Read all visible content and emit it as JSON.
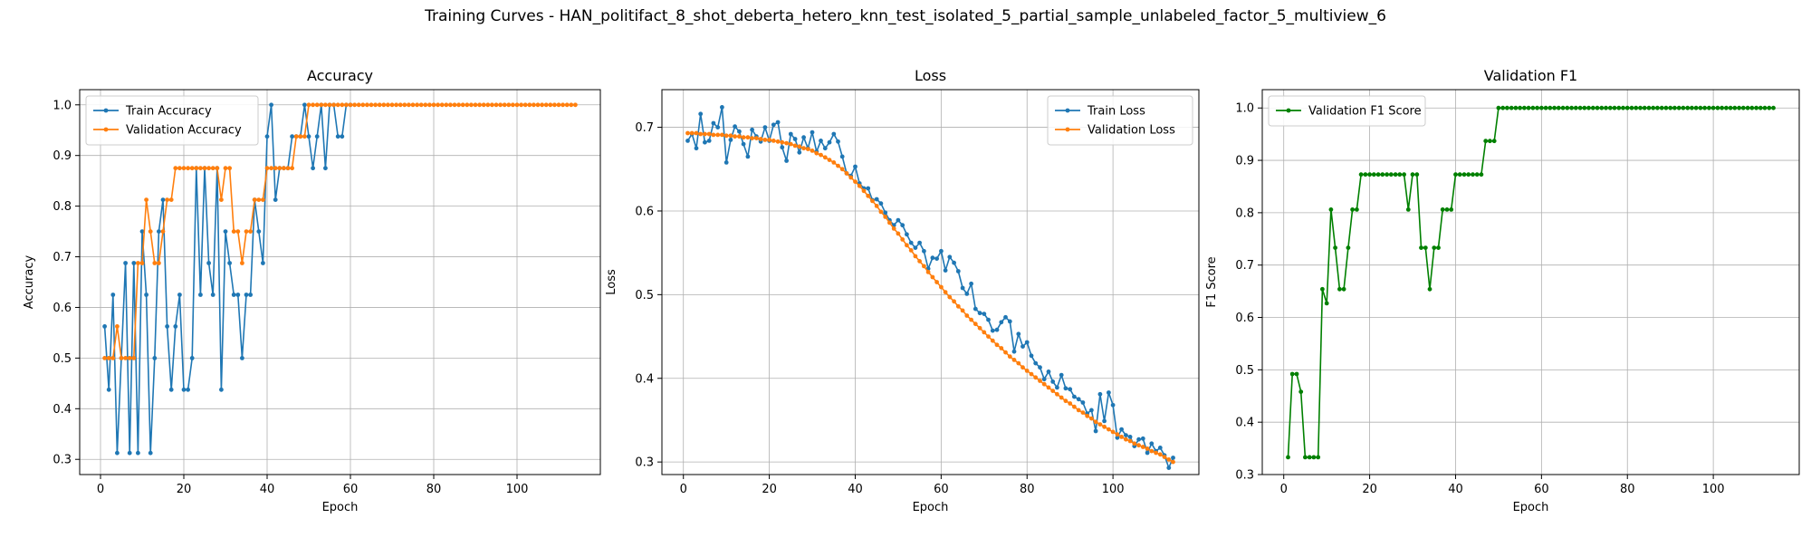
{
  "figure": {
    "suptitle": "Training Curves - HAN_politifact_8_shot_deberta_hetero_knn_test_isolated_5_partial_sample_unlabeled_factor_5_multiview_6"
  },
  "colors": {
    "blue": "#1f77b4",
    "orange": "#ff7f0e",
    "green": "#008000",
    "grid": "#b0b0b0"
  },
  "chart_data": [
    {
      "type": "line",
      "title": "Accuracy",
      "xlabel": "Epoch",
      "ylabel": "Accuracy",
      "xlim": [
        -5,
        120
      ],
      "ylim": [
        0.27,
        1.03
      ],
      "xticks": [
        0,
        20,
        40,
        60,
        80,
        100
      ],
      "yticks": [
        0.3,
        0.4,
        0.5,
        0.6,
        0.7,
        0.8,
        0.9,
        1.0
      ],
      "grid": true,
      "legend": "upper-left",
      "series": [
        {
          "name": "Train Accuracy",
          "color": "#1f77b4",
          "x_start": 1,
          "values": [
            0.5625,
            0.4375,
            0.625,
            0.3125,
            0.5,
            0.6875,
            0.3125,
            0.6875,
            0.3125,
            0.75,
            0.625,
            0.3125,
            0.5,
            0.75,
            0.8125,
            0.5625,
            0.4375,
            0.5625,
            0.625,
            0.4375,
            0.4375,
            0.5,
            0.875,
            0.625,
            0.875,
            0.6875,
            0.625,
            0.875,
            0.4375,
            0.75,
            0.6875,
            0.625,
            0.625,
            0.5,
            0.625,
            0.625,
            0.8125,
            0.75,
            0.6875,
            0.9375,
            1.0,
            0.8125,
            0.875,
            0.875,
            0.875,
            0.9375,
            0.9375,
            0.9375,
            1.0,
            0.9375,
            0.875,
            0.9375,
            1.0,
            0.875,
            1.0,
            1.0,
            0.9375,
            0.9375,
            1.0,
            1.0
          ]
        },
        {
          "name": "Validation Accuracy",
          "color": "#ff7f0e",
          "x_start": 1,
          "values": [
            0.5,
            0.5,
            0.5,
            0.5625,
            0.5,
            0.5,
            0.5,
            0.5,
            0.6875,
            0.6875,
            0.8125,
            0.75,
            0.6875,
            0.6875,
            0.75,
            0.8125,
            0.8125,
            0.875,
            0.875,
            0.875,
            0.875,
            0.875,
            0.875,
            0.875,
            0.875,
            0.875,
            0.875,
            0.875,
            0.8125,
            0.875,
            0.875,
            0.75,
            0.75,
            0.6875,
            0.75,
            0.75,
            0.8125,
            0.8125,
            0.8125,
            0.875,
            0.875,
            0.875,
            0.875,
            0.875,
            0.875,
            0.875,
            0.9375,
            0.9375,
            0.9375,
            1.0,
            1.0,
            1.0,
            1.0,
            1.0,
            1.0,
            1.0,
            1.0,
            1.0,
            1.0,
            1.0,
            1.0,
            1.0,
            1.0,
            1.0,
            1.0,
            1.0,
            1.0,
            1.0,
            1.0,
            1.0,
            1.0,
            1.0,
            1.0,
            1.0,
            1.0,
            1.0,
            1.0,
            1.0,
            1.0,
            1.0,
            1.0,
            1.0,
            1.0,
            1.0,
            1.0,
            1.0,
            1.0,
            1.0,
            1.0,
            1.0,
            1.0,
            1.0,
            1.0,
            1.0,
            1.0,
            1.0,
            1.0,
            1.0,
            1.0,
            1.0,
            1.0,
            1.0,
            1.0,
            1.0,
            1.0,
            1.0,
            1.0,
            1.0,
            1.0,
            1.0,
            1.0,
            1.0,
            1.0,
            1.0
          ]
        }
      ]
    },
    {
      "type": "line",
      "title": "Loss",
      "xlabel": "Epoch",
      "ylabel": "Loss",
      "xlim": [
        -5,
        120
      ],
      "ylim": [
        0.285,
        0.745
      ],
      "xticks": [
        0,
        20,
        40,
        60,
        80,
        100
      ],
      "yticks": [
        0.3,
        0.4,
        0.5,
        0.6,
        0.7
      ],
      "grid": true,
      "legend": "upper-right",
      "series": [
        {
          "name": "Train Loss",
          "color": "#1f77b4",
          "x_start": 1,
          "values": [
            0.684,
            0.692,
            0.675,
            0.716,
            0.682,
            0.684,
            0.705,
            0.7,
            0.724,
            0.658,
            0.685,
            0.701,
            0.695,
            0.68,
            0.665,
            0.697,
            0.689,
            0.683,
            0.7,
            0.684,
            0.703,
            0.706,
            0.676,
            0.66,
            0.692,
            0.686,
            0.67,
            0.688,
            0.675,
            0.694,
            0.671,
            0.684,
            0.675,
            0.682,
            0.692,
            0.683,
            0.665,
            0.645,
            0.642,
            0.653,
            0.633,
            0.627,
            0.627,
            0.613,
            0.614,
            0.609,
            0.598,
            0.589,
            0.583,
            0.589,
            0.583,
            0.572,
            0.562,
            0.556,
            0.562,
            0.552,
            0.531,
            0.544,
            0.543,
            0.552,
            0.529,
            0.545,
            0.538,
            0.528,
            0.508,
            0.501,
            0.513,
            0.483,
            0.478,
            0.477,
            0.47,
            0.457,
            0.458,
            0.467,
            0.473,
            0.468,
            0.432,
            0.453,
            0.438,
            0.443,
            0.427,
            0.418,
            0.413,
            0.399,
            0.408,
            0.396,
            0.389,
            0.404,
            0.388,
            0.387,
            0.378,
            0.375,
            0.371,
            0.358,
            0.362,
            0.337,
            0.381,
            0.349,
            0.383,
            0.368,
            0.329,
            0.339,
            0.332,
            0.33,
            0.319,
            0.327,
            0.328,
            0.311,
            0.322,
            0.313,
            0.317,
            0.308,
            0.293,
            0.305
          ]
        },
        {
          "name": "Validation Loss",
          "color": "#ff7f0e",
          "x_start": 1,
          "values": [
            0.693,
            0.693,
            0.693,
            0.692,
            0.692,
            0.692,
            0.691,
            0.691,
            0.691,
            0.69,
            0.69,
            0.689,
            0.689,
            0.688,
            0.688,
            0.687,
            0.687,
            0.686,
            0.685,
            0.685,
            0.684,
            0.683,
            0.682,
            0.681,
            0.68,
            0.678,
            0.677,
            0.675,
            0.674,
            0.672,
            0.669,
            0.667,
            0.664,
            0.661,
            0.658,
            0.654,
            0.65,
            0.645,
            0.64,
            0.635,
            0.63,
            0.624,
            0.618,
            0.612,
            0.606,
            0.599,
            0.593,
            0.586,
            0.579,
            0.573,
            0.566,
            0.559,
            0.553,
            0.546,
            0.54,
            0.534,
            0.527,
            0.521,
            0.515,
            0.509,
            0.503,
            0.497,
            0.492,
            0.486,
            0.481,
            0.475,
            0.47,
            0.465,
            0.46,
            0.455,
            0.45,
            0.445,
            0.44,
            0.436,
            0.431,
            0.426,
            0.422,
            0.418,
            0.413,
            0.409,
            0.405,
            0.401,
            0.397,
            0.393,
            0.389,
            0.385,
            0.381,
            0.377,
            0.373,
            0.37,
            0.366,
            0.362,
            0.359,
            0.355,
            0.352,
            0.348,
            0.345,
            0.342,
            0.339,
            0.336,
            0.333,
            0.33,
            0.327,
            0.325,
            0.322,
            0.32,
            0.318,
            0.316,
            0.313,
            0.311,
            0.309,
            0.306,
            0.303,
            0.3
          ]
        }
      ]
    },
    {
      "type": "line",
      "title": "Validation F1",
      "xlabel": "Epoch",
      "ylabel": "F1 Score",
      "xlim": [
        -5,
        120
      ],
      "ylim": [
        0.3,
        1.035
      ],
      "xticks": [
        0,
        20,
        40,
        60,
        80,
        100
      ],
      "yticks": [
        0.3,
        0.4,
        0.5,
        0.6,
        0.7,
        0.8,
        0.9,
        1.0
      ],
      "grid": true,
      "legend": "upper-left",
      "series": [
        {
          "name": "Validation F1 Score",
          "color": "#008000",
          "x_start": 1,
          "values": [
            0.333,
            0.492,
            0.492,
            0.458,
            0.333,
            0.333,
            0.333,
            0.333,
            0.654,
            0.627,
            0.806,
            0.733,
            0.654,
            0.654,
            0.733,
            0.806,
            0.806,
            0.873,
            0.873,
            0.873,
            0.873,
            0.873,
            0.873,
            0.873,
            0.873,
            0.873,
            0.873,
            0.873,
            0.806,
            0.873,
            0.873,
            0.733,
            0.733,
            0.654,
            0.733,
            0.733,
            0.806,
            0.806,
            0.806,
            0.873,
            0.873,
            0.873,
            0.873,
            0.873,
            0.873,
            0.873,
            0.937,
            0.937,
            0.937,
            1.0,
            1.0,
            1.0,
            1.0,
            1.0,
            1.0,
            1.0,
            1.0,
            1.0,
            1.0,
            1.0,
            1.0,
            1.0,
            1.0,
            1.0,
            1.0,
            1.0,
            1.0,
            1.0,
            1.0,
            1.0,
            1.0,
            1.0,
            1.0,
            1.0,
            1.0,
            1.0,
            1.0,
            1.0,
            1.0,
            1.0,
            1.0,
            1.0,
            1.0,
            1.0,
            1.0,
            1.0,
            1.0,
            1.0,
            1.0,
            1.0,
            1.0,
            1.0,
            1.0,
            1.0,
            1.0,
            1.0,
            1.0,
            1.0,
            1.0,
            1.0,
            1.0,
            1.0,
            1.0,
            1.0,
            1.0,
            1.0,
            1.0,
            1.0,
            1.0,
            1.0,
            1.0,
            1.0,
            1.0,
            1.0
          ]
        }
      ]
    }
  ]
}
